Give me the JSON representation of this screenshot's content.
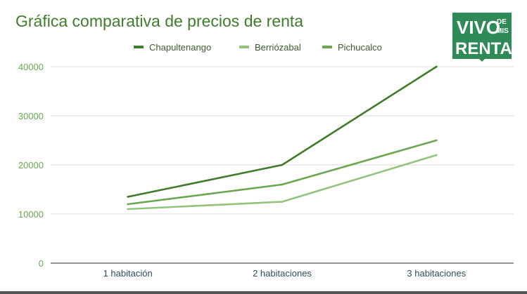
{
  "colors": {
    "title": "#3f7d2a",
    "tick": "#6aa84f",
    "grid": "#d9d9d9",
    "axis": "#555555",
    "category_text": "#2f4f5f",
    "logo_bg": "#2e8b57"
  },
  "logo": {
    "line1": "VIVO",
    "de": "DE",
    "mis": "MIS",
    "line2": "RENTA$"
  },
  "chart_data": {
    "type": "line",
    "title": "Gráfica comparativa de precios de renta",
    "categories": [
      "1 habitación",
      "2 habitaciones",
      "3 habitaciones"
    ],
    "ylim": [
      0,
      40000
    ],
    "yticks": [
      0,
      10000,
      20000,
      30000,
      40000
    ],
    "grid": true,
    "legend_position": "top",
    "series": [
      {
        "name": "Chapultenango",
        "color": "#3f7d2a",
        "values": [
          13500,
          20000,
          40000
        ]
      },
      {
        "name": "Berriózabal",
        "color": "#93c47d",
        "values": [
          11000,
          12500,
          22000
        ]
      },
      {
        "name": "Pichucalco",
        "color": "#6aa84f",
        "values": [
          12000,
          16000,
          25000
        ]
      }
    ]
  }
}
